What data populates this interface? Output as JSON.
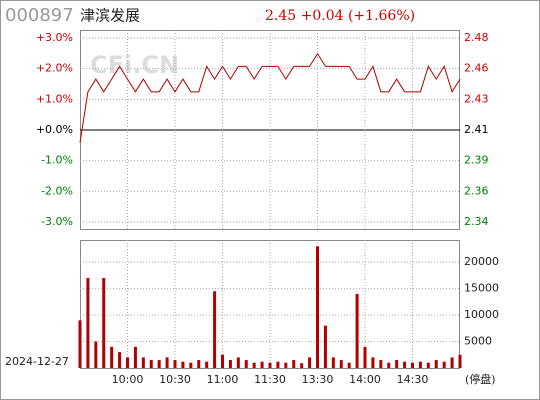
{
  "header": {
    "code": "000897",
    "name": "津滨发展",
    "quote": "2.45 +0.04 (+1.66%)"
  },
  "watermark": "CFi.CN",
  "date": "2024-12-27",
  "volume_note": "(停盘)",
  "chart_data": [
    {
      "type": "line",
      "up_color": "#cc0000",
      "down_color": "#008000",
      "zero_color": "#000000",
      "grid": true,
      "ylim": [
        -3,
        3
      ],
      "yticks": [
        {
          "value": 3,
          "label": "+3.0%"
        },
        {
          "value": 2,
          "label": "+2.0%"
        },
        {
          "value": 1,
          "label": "+1.0%"
        },
        {
          "value": 0,
          "label": "+0.0%"
        },
        {
          "value": -1,
          "label": "-1.0%"
        },
        {
          "value": -2,
          "label": "-2.0%"
        },
        {
          "value": -3,
          "label": "-3.0%"
        }
      ],
      "y2lim": [
        2.3377,
        2.4823
      ],
      "y2ticks": [
        {
          "value": 2.4823,
          "label": "2.48"
        },
        {
          "value": 2.4582,
          "label": "2.46"
        },
        {
          "value": 2.4341,
          "label": "2.43"
        },
        {
          "value": 2.41,
          "label": "2.41"
        },
        {
          "value": 2.3859,
          "label": "2.39"
        },
        {
          "value": 2.3618,
          "label": "2.36"
        },
        {
          "value": 2.3377,
          "label": "2.34"
        }
      ],
      "series": [
        {
          "color": "#b00000",
          "axis": "y2",
          "values": [
            2.4,
            2.44,
            2.45,
            2.44,
            2.45,
            2.46,
            2.45,
            2.44,
            2.45,
            2.44,
            2.44,
            2.45,
            2.44,
            2.45,
            2.44,
            2.44,
            2.46,
            2.45,
            2.46,
            2.45,
            2.46,
            2.46,
            2.45,
            2.46,
            2.46,
            2.46,
            2.45,
            2.46,
            2.46,
            2.46,
            2.47,
            2.46,
            2.46,
            2.46,
            2.46,
            2.45,
            2.45,
            2.46,
            2.44,
            2.44,
            2.45,
            2.44,
            2.44,
            2.44,
            2.46,
            2.45,
            2.46,
            2.44,
            2.45
          ]
        }
      ]
    },
    {
      "type": "bar",
      "color": "#b00000",
      "grid": true,
      "categories": [
        null,
        null,
        null,
        null,
        null,
        null,
        "10:00",
        null,
        null,
        null,
        null,
        null,
        "10:30",
        null,
        null,
        null,
        null,
        null,
        "11:00",
        null,
        null,
        null,
        null,
        null,
        "11:30",
        null,
        null,
        null,
        null,
        null,
        "13:30",
        null,
        null,
        null,
        null,
        null,
        "14:00",
        null,
        null,
        null,
        null,
        null,
        "14:30",
        null,
        null,
        null,
        null,
        null,
        null
      ],
      "ylim": [
        0,
        24000
      ],
      "yticks": [
        5000,
        10000,
        15000,
        20000
      ],
      "values": [
        9000,
        17000,
        5000,
        17000,
        4000,
        3000,
        2000,
        4000,
        2000,
        1500,
        1500,
        2000,
        1500,
        1200,
        1000,
        1500,
        1200,
        14500,
        2500,
        1500,
        2000,
        1500,
        1000,
        1200,
        1000,
        1200,
        1000,
        1500,
        900,
        2000,
        23000,
        8000,
        2000,
        1500,
        1000,
        14000,
        4000,
        2000,
        1500,
        1000,
        1500,
        1200,
        1000,
        1200,
        1000,
        1500,
        1200,
        2000,
        2500
      ]
    }
  ]
}
